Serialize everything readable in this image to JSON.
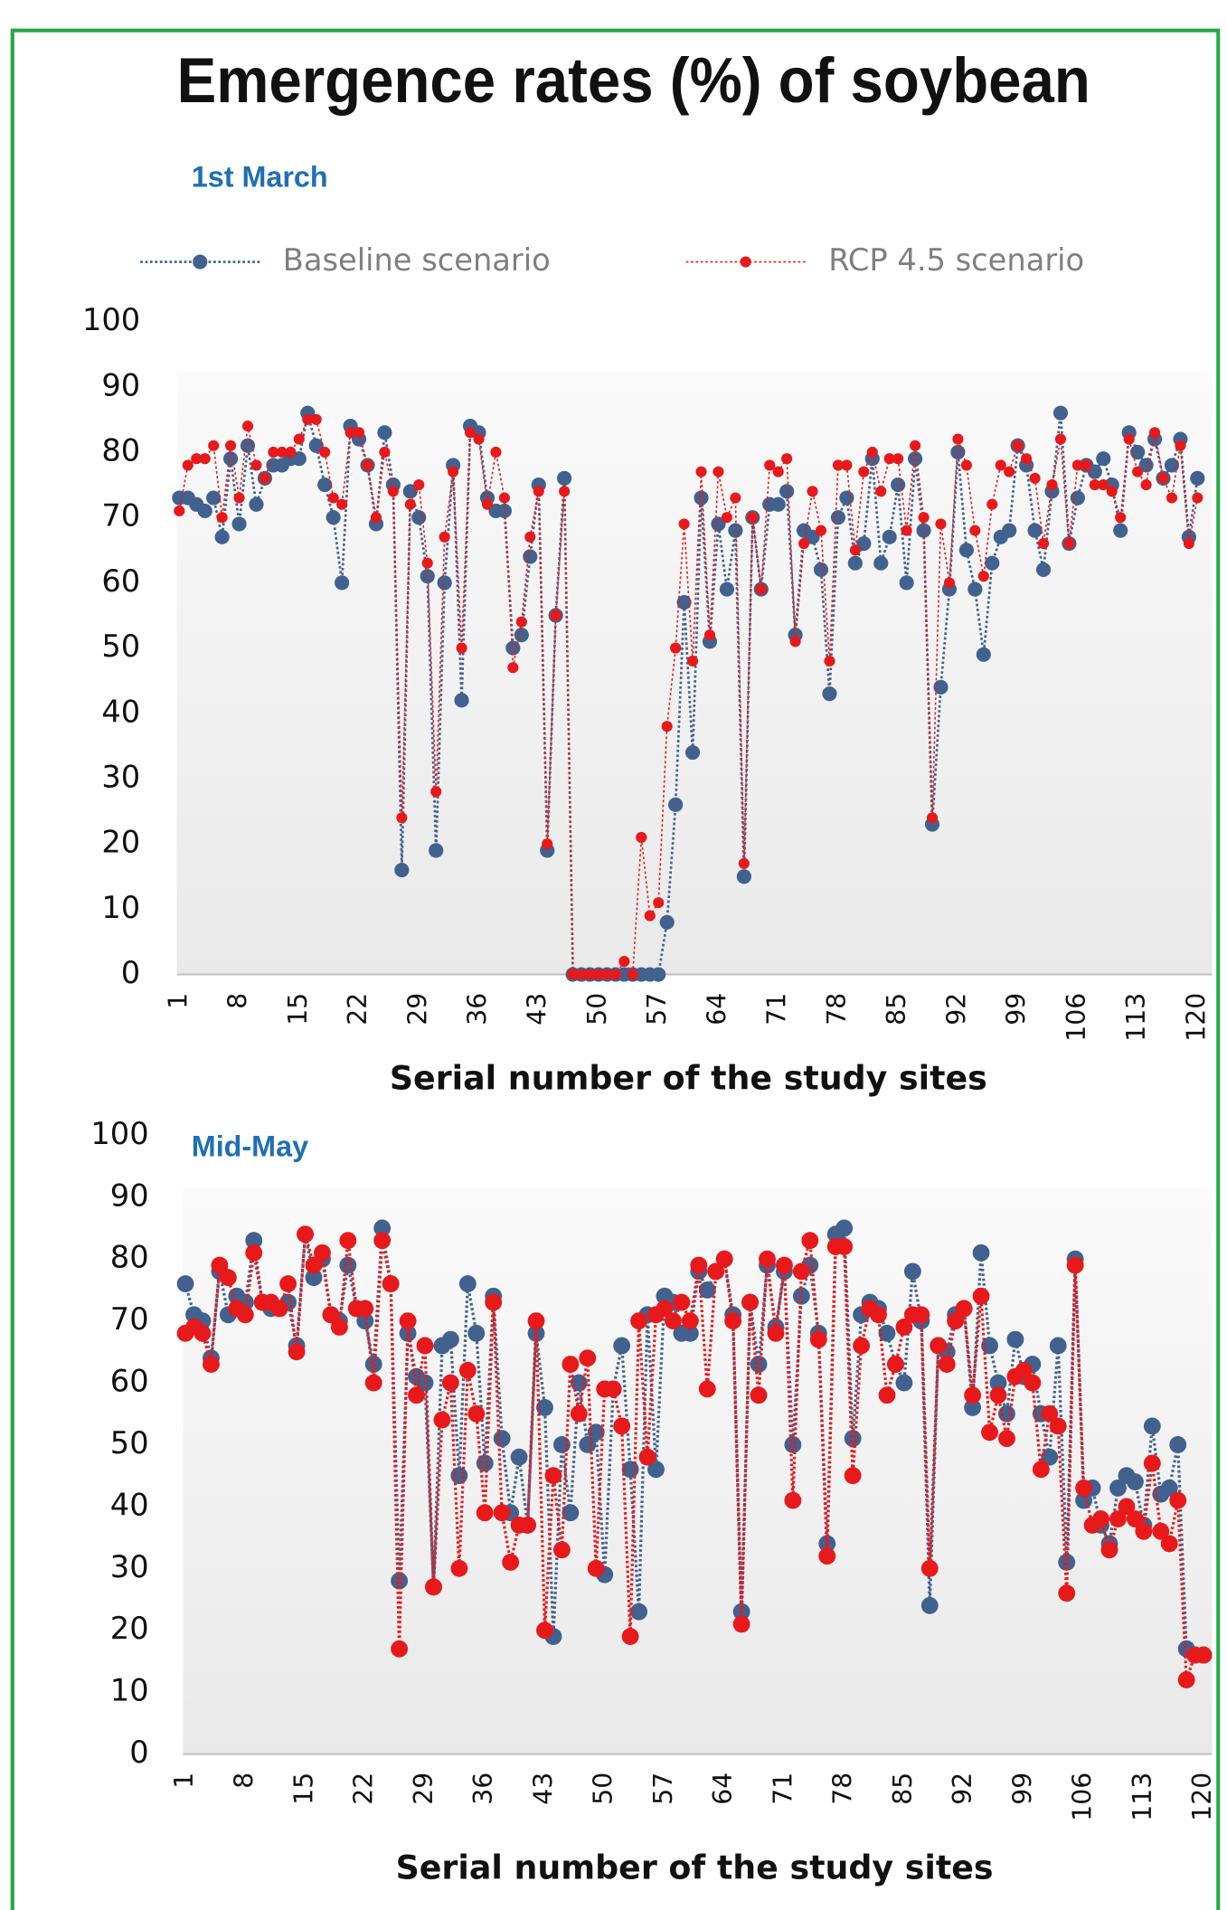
{
  "title": "Emergence rates (%) of soybean",
  "chart_data": [
    {
      "type": "line",
      "subtitle": "1st March",
      "xlabel": "Serial number of the study sites",
      "x": [
        1,
        2,
        3,
        4,
        5,
        6,
        7,
        8,
        9,
        10,
        11,
        12,
        13,
        14,
        15,
        16,
        17,
        18,
        19,
        20,
        21,
        22,
        23,
        24,
        25,
        26,
        27,
        28,
        29,
        30,
        31,
        32,
        33,
        34,
        35,
        36,
        37,
        38,
        39,
        40,
        41,
        42,
        43,
        44,
        45,
        46,
        47,
        48,
        49,
        50,
        51,
        52,
        53,
        54,
        55,
        56,
        57,
        58,
        59,
        60,
        61,
        62,
        63,
        64,
        65,
        66,
        67,
        68,
        69,
        70,
        71,
        72,
        73,
        74,
        75,
        76,
        77,
        78,
        79,
        80,
        81,
        82,
        83,
        84,
        85,
        86,
        87,
        88,
        89,
        90,
        91,
        92,
        93,
        94,
        95,
        96,
        97,
        98,
        99,
        100,
        101,
        102,
        103,
        104,
        105,
        106,
        107,
        108,
        109,
        110,
        111,
        112,
        113,
        114,
        115,
        116,
        117,
        118,
        119,
        120
      ],
      "xlim": [
        1,
        120
      ],
      "xticks": [
        1,
        8,
        15,
        22,
        29,
        36,
        43,
        50,
        57,
        64,
        71,
        78,
        85,
        92,
        99,
        106,
        113,
        120
      ],
      "ylim": [
        0,
        100
      ],
      "yticks": [
        0,
        10,
        20,
        30,
        40,
        50,
        60,
        70,
        80,
        90,
        100
      ],
      "series": [
        {
          "name": "Baseline scenario",
          "color": "#41618f",
          "values": [
            73,
            73,
            72,
            71,
            73,
            67,
            79,
            69,
            81,
            72,
            76,
            78,
            78,
            79,
            79,
            86,
            81,
            75,
            70,
            60,
            84,
            82,
            78,
            69,
            83,
            75,
            16,
            74,
            70,
            61,
            19,
            60,
            78,
            42,
            84,
            83,
            73,
            71,
            71,
            50,
            52,
            64,
            75,
            19,
            55,
            76,
            0,
            0,
            0,
            0,
            0,
            0,
            0,
            0,
            0,
            0,
            0,
            8,
            26,
            57,
            34,
            73,
            51,
            69,
            59,
            68,
            15,
            70,
            59,
            72,
            72,
            74,
            52,
            68,
            67,
            62,
            43,
            70,
            73,
            63,
            66,
            79,
            63,
            67,
            75,
            60,
            79,
            68,
            23,
            44,
            59,
            80,
            65,
            59,
            49,
            63,
            67,
            68,
            81,
            78,
            68,
            62,
            74,
            86,
            66,
            73,
            78,
            77,
            79,
            75,
            68,
            83,
            80,
            78,
            82,
            76,
            78,
            82,
            67,
            76
          ]
        },
        {
          "name": "RCP 4.5 scenario",
          "color": "#e8191b",
          "values": [
            71,
            78,
            79,
            79,
            81,
            70,
            81,
            73,
            84,
            78,
            76,
            80,
            80,
            80,
            82,
            85,
            85,
            80,
            73,
            72,
            83,
            83,
            78,
            70,
            80,
            74,
            24,
            72,
            75,
            63,
            28,
            67,
            77,
            50,
            83,
            82,
            72,
            80,
            73,
            47,
            54,
            67,
            74,
            20,
            55,
            74,
            0,
            0,
            0,
            0,
            0,
            0,
            2,
            0,
            21,
            9,
            11,
            38,
            50,
            69,
            48,
            77,
            52,
            77,
            70,
            73,
            17,
            70,
            59,
            78,
            77,
            79,
            51,
            66,
            74,
            68,
            48,
            78,
            78,
            65,
            77,
            80,
            74,
            79,
            79,
            68,
            81,
            70,
            24,
            69,
            60,
            82,
            78,
            68,
            61,
            72,
            78,
            77,
            81,
            79,
            76,
            66,
            75,
            82,
            66,
            78,
            78,
            75,
            75,
            74,
            70,
            82,
            77,
            75,
            83,
            76,
            73,
            81,
            66,
            73
          ]
        }
      ]
    },
    {
      "type": "line",
      "subtitle": "Mid-May",
      "xlabel": "Serial number of the study sites",
      "x": [
        1,
        2,
        3,
        4,
        5,
        6,
        7,
        8,
        9,
        10,
        11,
        12,
        13,
        14,
        15,
        16,
        17,
        18,
        19,
        20,
        21,
        22,
        23,
        24,
        25,
        26,
        27,
        28,
        29,
        30,
        31,
        32,
        33,
        34,
        35,
        36,
        37,
        38,
        39,
        40,
        41,
        42,
        43,
        44,
        45,
        46,
        47,
        48,
        49,
        50,
        51,
        52,
        53,
        54,
        55,
        56,
        57,
        58,
        59,
        60,
        61,
        62,
        63,
        64,
        65,
        66,
        67,
        68,
        69,
        70,
        71,
        72,
        73,
        74,
        75,
        76,
        77,
        78,
        79,
        80,
        81,
        82,
        83,
        84,
        85,
        86,
        87,
        88,
        89,
        90,
        91,
        92,
        93,
        94,
        95,
        96,
        97,
        98,
        99,
        100,
        101,
        102,
        103,
        104,
        105,
        106,
        107,
        108,
        109,
        110,
        111,
        112,
        113,
        114,
        115,
        116,
        117,
        118,
        119,
        120
      ],
      "xlim": [
        1,
        120
      ],
      "xticks": [
        1,
        8,
        15,
        22,
        29,
        36,
        43,
        50,
        57,
        64,
        71,
        78,
        85,
        92,
        99,
        106,
        113,
        120
      ],
      "ylim": [
        0,
        100
      ],
      "yticks": [
        0,
        10,
        20,
        30,
        40,
        50,
        60,
        70,
        80,
        90,
        100
      ],
      "series": [
        {
          "color": "#41618f",
          "values": [
            76,
            71,
            70,
            64,
            78,
            71,
            74,
            73,
            83,
            73,
            72,
            72,
            73,
            66,
            84,
            77,
            80,
            71,
            70,
            79,
            72,
            70,
            63,
            85,
            76,
            28,
            68,
            61,
            60,
            27,
            66,
            67,
            45,
            76,
            68,
            47,
            74,
            51,
            39,
            48,
            37,
            68,
            56,
            19,
            50,
            39,
            60,
            50,
            52,
            29,
            59,
            66,
            46,
            23,
            71,
            46,
            74,
            73,
            68,
            68,
            78,
            75,
            78,
            80,
            71,
            23,
            73,
            63,
            79,
            69,
            78,
            50,
            74,
            79,
            68,
            34,
            84,
            85,
            51,
            71,
            73,
            72,
            68,
            63,
            60,
            78,
            70,
            24,
            66,
            65,
            71,
            72,
            56,
            81,
            66,
            60,
            55,
            67,
            61,
            63,
            55,
            48,
            66,
            31,
            80,
            41,
            43,
            37,
            34,
            43,
            45,
            44,
            37,
            53,
            42,
            43,
            50,
            17,
            16,
            16
          ]
        },
        {
          "color": "#e8191b",
          "values": [
            68,
            69,
            68,
            63,
            79,
            77,
            72,
            71,
            81,
            73,
            73,
            72,
            76,
            65,
            84,
            79,
            81,
            71,
            69,
            83,
            72,
            72,
            60,
            83,
            76,
            17,
            70,
            58,
            66,
            27,
            54,
            60,
            30,
            62,
            55,
            39,
            73,
            39,
            31,
            37,
            37,
            70,
            20,
            45,
            33,
            63,
            55,
            64,
            30,
            59,
            59,
            53,
            19,
            70,
            48,
            71,
            72,
            70,
            73,
            70,
            79,
            59,
            78,
            80,
            70,
            21,
            73,
            58,
            80,
            68,
            79,
            41,
            78,
            83,
            67,
            32,
            82,
            82,
            45,
            66,
            72,
            71,
            58,
            63,
            69,
            71,
            71,
            30,
            66,
            63,
            70,
            72,
            58,
            74,
            52,
            58,
            51,
            61,
            62,
            60,
            46,
            55,
            53,
            26,
            79,
            43,
            37,
            38,
            33,
            38,
            40,
            38,
            36,
            47,
            36,
            34,
            41,
            12,
            16,
            16
          ]
        }
      ]
    }
  ]
}
